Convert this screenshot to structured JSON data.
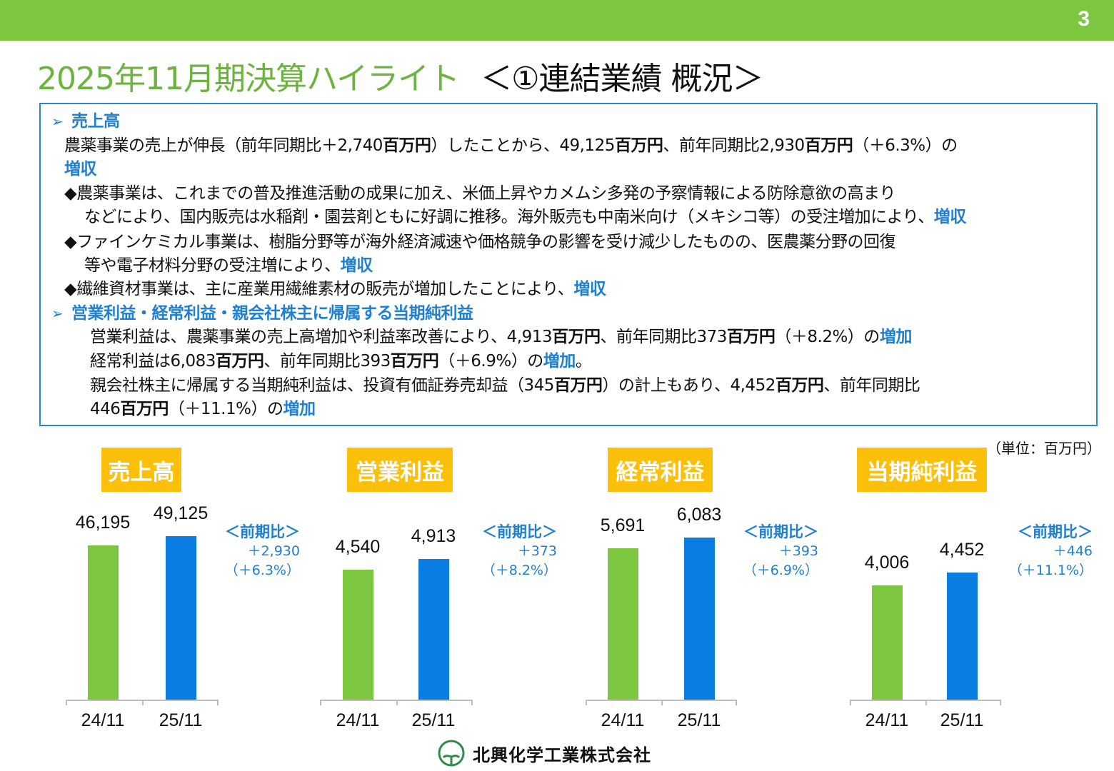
{
  "page_number": "3",
  "title": {
    "main": "2025年11月期決算ハイライト",
    "sub": "＜①連結業績 概況＞"
  },
  "summary": {
    "lines": [
      {
        "indent": 0,
        "bullet": "➢",
        "segments": [
          {
            "t": "売上高",
            "s": "hl"
          }
        ]
      },
      {
        "indent": 1,
        "segments": [
          {
            "t": "農薬事業の売上が伸長（前年同期比＋2,740",
            "s": "n"
          },
          {
            "t": "百万円",
            "s": "b"
          },
          {
            "t": "）したことから、49,125",
            "s": "n"
          },
          {
            "t": "百万円",
            "s": "b"
          },
          {
            "t": "、前年同期比2,930",
            "s": "n"
          },
          {
            "t": "百万円",
            "s": "b"
          },
          {
            "t": "（＋6.3%）の",
            "s": "n"
          }
        ]
      },
      {
        "indent": 1,
        "segments": [
          {
            "t": "増収",
            "s": "hl"
          }
        ]
      },
      {
        "indent": 1,
        "segments": [
          {
            "t": "◆農薬事業は、これまでの普及推進活動の成果に加え、米価上昇やカメムシ多発の予察情報による防除意欲の高まり",
            "s": "n"
          }
        ]
      },
      {
        "indent": 2,
        "segments": [
          {
            "t": "などにより、国内販売は水稲剤・園芸剤ともに好調に推移。海外販売も中南米向け（メキシコ等）の受注増加により、",
            "s": "n"
          },
          {
            "t": "増収",
            "s": "hl"
          }
        ]
      },
      {
        "indent": 1,
        "segments": [
          {
            "t": "◆ファインケミカル事業は、樹脂分野等が海外経済減速や価格競争の影響を受け減少したものの、医農薬分野の回復",
            "s": "n"
          }
        ]
      },
      {
        "indent": 2,
        "segments": [
          {
            "t": "等や電子材料分野の受注増により、",
            "s": "n"
          },
          {
            "t": "増収",
            "s": "hl"
          }
        ]
      },
      {
        "indent": 1,
        "segments": [
          {
            "t": "◆繊維資材事業は、主に産業用繊維素材の販売が増加したことにより、",
            "s": "n"
          },
          {
            "t": "増収",
            "s": "hl"
          }
        ]
      },
      {
        "indent": 0,
        "bullet": "➢",
        "segments": [
          {
            "t": "営業利益・経常利益・親会社株主に帰属する当期純利益",
            "s": "hl"
          }
        ]
      },
      {
        "indent": 3,
        "segments": [
          {
            "t": "営業利益は、農薬事業の売上高増加や利益率改善により、4,913",
            "s": "n"
          },
          {
            "t": "百万円",
            "s": "b"
          },
          {
            "t": "、前年同期比373",
            "s": "n"
          },
          {
            "t": "百万円",
            "s": "b"
          },
          {
            "t": "（＋8.2%）の",
            "s": "n"
          },
          {
            "t": "増加",
            "s": "hl"
          }
        ]
      },
      {
        "indent": 3,
        "segments": [
          {
            "t": "経常利益は6,083",
            "s": "n"
          },
          {
            "t": "百万円",
            "s": "b"
          },
          {
            "t": "、前年同期比393",
            "s": "n"
          },
          {
            "t": "百万円",
            "s": "b"
          },
          {
            "t": "（＋6.9%）の",
            "s": "n"
          },
          {
            "t": "増加",
            "s": "hl"
          },
          {
            "t": "。",
            "s": "n"
          }
        ]
      },
      {
        "indent": 3,
        "segments": [
          {
            "t": "親会社株主に帰属する当期純利益は、投資有価証券売却益（345",
            "s": "n"
          },
          {
            "t": "百万円",
            "s": "b"
          },
          {
            "t": "）の計上もあり、4,452",
            "s": "n"
          },
          {
            "t": "百万円",
            "s": "b"
          },
          {
            "t": "、前年同期比",
            "s": "n"
          }
        ]
      },
      {
        "indent": 3,
        "segments": [
          {
            "t": "446",
            "s": "n"
          },
          {
            "t": "百万円",
            "s": "b"
          },
          {
            "t": "（＋11.1%）の",
            "s": "n"
          },
          {
            "t": "増加",
            "s": "hl"
          }
        ]
      }
    ]
  },
  "unit_label": "（単位：百万円）",
  "colors": {
    "prev": "#7dc63f",
    "curr": "#0a7de3",
    "title_bg": "#fcc00a",
    "accent": "#1f7fd0",
    "topbar": "#7dc63f"
  },
  "chart_data": [
    {
      "type": "bar",
      "title": "売上高",
      "categories": [
        "24/11",
        "25/11"
      ],
      "values": [
        46195,
        49125
      ],
      "labels": [
        "46,195",
        "49,125"
      ],
      "ylim": [
        0,
        60000
      ],
      "comparison": {
        "heading": "＜前期比＞",
        "diff": "＋2,930",
        "pct": "（＋6.3%）"
      }
    },
    {
      "type": "bar",
      "title": "営業利益",
      "categories": [
        "24/11",
        "25/11"
      ],
      "values": [
        4540,
        4913
      ],
      "labels": [
        "4,540",
        "4,913"
      ],
      "ylim": [
        0,
        7000
      ],
      "comparison": {
        "heading": "＜前期比＞",
        "diff": "＋373",
        "pct": "（＋8.2%）"
      }
    },
    {
      "type": "bar",
      "title": "経常利益",
      "categories": [
        "24/11",
        "25/11"
      ],
      "values": [
        5691,
        6083
      ],
      "labels": [
        "5,691",
        "6,083"
      ],
      "ylim": [
        0,
        7500
      ],
      "comparison": {
        "heading": "＜前期比＞",
        "diff": "＋393",
        "pct": "（＋6.9%）"
      }
    },
    {
      "type": "bar",
      "title": "当期純利益",
      "categories": [
        "24/11",
        "25/11"
      ],
      "values": [
        4006,
        4452
      ],
      "labels": [
        "4,006",
        "4,452"
      ],
      "ylim": [
        0,
        7000
      ],
      "comparison": {
        "heading": "＜前期比＞",
        "diff": "＋446",
        "pct": "（＋11.1%）"
      }
    }
  ],
  "footer": {
    "company": "北興化学工業株式会社"
  }
}
